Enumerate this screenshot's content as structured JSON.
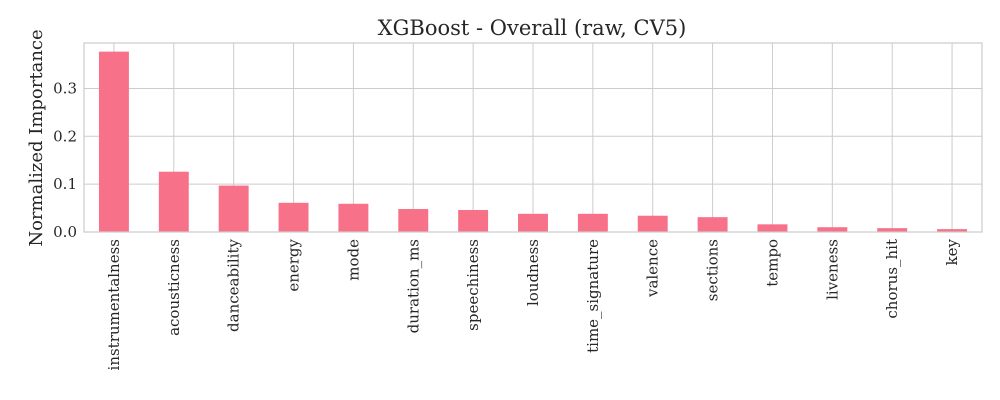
{
  "chart_data": {
    "type": "bar",
    "title": "XGBoost - Overall (raw, CV5)",
    "xlabel": "",
    "ylabel": "Normalized Importance",
    "ylim": [
      0,
      0.395
    ],
    "yticks": [
      "0.0",
      "0.1",
      "0.2",
      "0.3"
    ],
    "ytick_values": [
      0,
      0.1,
      0.2,
      0.3
    ],
    "categories": [
      "instrumentalness",
      "acousticness",
      "danceability",
      "energy",
      "mode",
      "duration_ms",
      "speechiness",
      "loudness",
      "time_signature",
      "valence",
      "sections",
      "tempo",
      "liveness",
      "chorus_hit",
      "key"
    ],
    "values": [
      0.377,
      0.126,
      0.097,
      0.061,
      0.059,
      0.048,
      0.046,
      0.038,
      0.038,
      0.034,
      0.031,
      0.016,
      0.01,
      0.008,
      0.006
    ],
    "grid": true,
    "bar_color": "#f77189",
    "grid_color": "#cccccc"
  }
}
